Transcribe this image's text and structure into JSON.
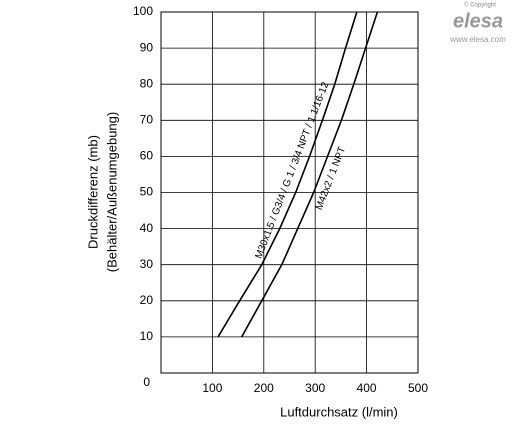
{
  "chart_data": {
    "type": "line",
    "x_label": "Luftdurchsatz (l/min)",
    "y_label": [
      "Druckdifferenz (mb)",
      "(Behälter/Außenumgebung)"
    ],
    "xlim": [
      0,
      500
    ],
    "xticks": [
      100,
      200,
      300,
      400,
      500
    ],
    "ylim": [
      0,
      100
    ],
    "yticks": [
      0,
      10,
      20,
      30,
      40,
      50,
      60,
      70,
      80,
      90,
      100
    ],
    "grid": true,
    "series": [
      {
        "name": "M30x1.5 / G3/4 / G 1 / 3/4 NPT / 1.1/16-12",
        "color": "#000000",
        "x": [
          111,
          153,
          196,
          231,
          262,
          289,
          314,
          338,
          359,
          381
        ],
        "values": [
          10,
          20,
          30,
          40,
          50,
          60,
          70,
          80,
          90,
          100
        ]
      },
      {
        "name": "M42x2 / 1 NPT",
        "color": "#000000",
        "x": [
          157,
          196,
          235,
          266,
          297,
          324,
          351,
          375,
          398,
          421
        ],
        "values": [
          10,
          20,
          30,
          40,
          50,
          60,
          70,
          80,
          90,
          100
        ]
      }
    ]
  },
  "watermark": {
    "copyright": "© Copyright",
    "brand": "elesa",
    "url": "www.elesa.com"
  }
}
